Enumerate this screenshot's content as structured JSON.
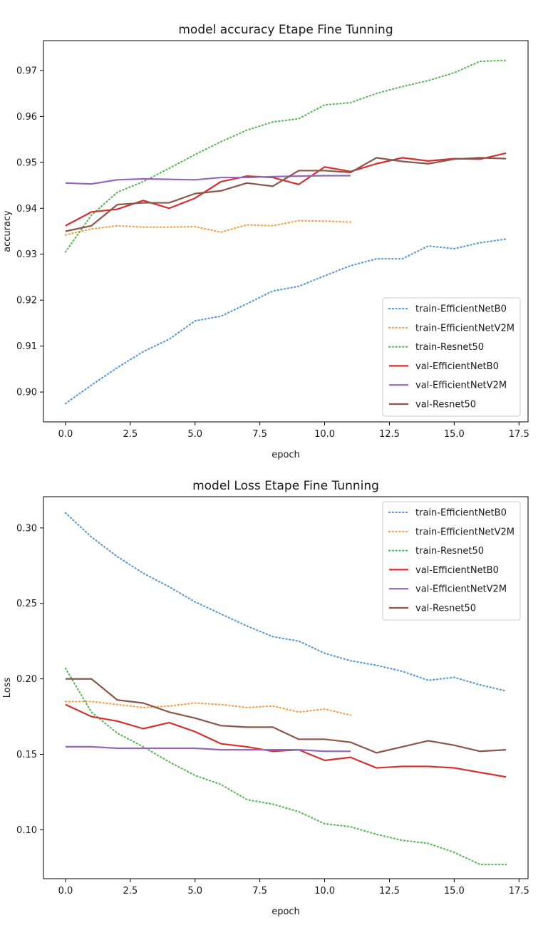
{
  "chart_data": [
    {
      "type": "line",
      "title": "model accuracy  Etape Fine Tunning",
      "xlabel": "epoch",
      "ylabel": "accuracy",
      "xlim": [
        -0.85,
        17.85
      ],
      "ylim": [
        0.8935,
        0.9765
      ],
      "xticks": [
        0.0,
        2.5,
        5.0,
        7.5,
        10.0,
        12.5,
        15.0,
        17.5
      ],
      "xtick_labels": [
        "0.0",
        "2.5",
        "5.0",
        "7.5",
        "10.0",
        "12.5",
        "15.0",
        "17.5"
      ],
      "yticks": [
        0.9,
        0.91,
        0.92,
        0.93,
        0.94,
        0.95,
        0.96,
        0.97
      ],
      "ytick_labels": [
        "0.90",
        "0.91",
        "0.92",
        "0.93",
        "0.94",
        "0.95",
        "0.96",
        "0.97"
      ],
      "grid": false,
      "legend_position": "lower-right",
      "series": [
        {
          "name": "train-EfficientNetB0",
          "color": "#5b9bd5",
          "style": "dotted",
          "x": [
            0,
            1,
            2,
            3,
            4,
            5,
            6,
            7,
            8,
            9,
            10,
            11,
            12,
            13,
            14,
            15,
            16,
            17
          ],
          "y": [
            0.8975,
            0.9015,
            0.9053,
            0.9088,
            0.9115,
            0.9155,
            0.9165,
            0.9192,
            0.922,
            0.923,
            0.9253,
            0.9275,
            0.929,
            0.929,
            0.9318,
            0.9312,
            0.9325,
            0.9333
          ]
        },
        {
          "name": "train-EfficientNetV2M",
          "color": "#f5a04a",
          "style": "dotted",
          "x": [
            0,
            1,
            2,
            3,
            4,
            5,
            6,
            7,
            8,
            9,
            10,
            11
          ],
          "y": [
            0.9342,
            0.9355,
            0.9362,
            0.9359,
            0.9359,
            0.936,
            0.9348,
            0.9364,
            0.9362,
            0.9373,
            0.9372,
            0.937
          ]
        },
        {
          "name": "train-Resnet50",
          "color": "#5fb85c",
          "style": "dotted",
          "x": [
            0,
            1,
            2,
            3,
            4,
            5,
            6,
            7,
            8,
            9,
            10,
            11,
            12,
            13,
            14,
            15,
            16,
            17
          ],
          "y": [
            0.9305,
            0.9385,
            0.9435,
            0.9458,
            0.9487,
            0.9517,
            0.9545,
            0.957,
            0.9588,
            0.9595,
            0.9625,
            0.963,
            0.965,
            0.9665,
            0.9678,
            0.9695,
            0.972,
            0.9722
          ]
        },
        {
          "name": "val-EfficientNetB0",
          "color": "#d62f2f",
          "style": "solid",
          "x": [
            0,
            1,
            2,
            3,
            4,
            5,
            6,
            7,
            8,
            9,
            10,
            11,
            12,
            13,
            14,
            15,
            16,
            17
          ],
          "y": [
            0.9362,
            0.9392,
            0.9398,
            0.9417,
            0.94,
            0.9422,
            0.9458,
            0.947,
            0.9467,
            0.9452,
            0.949,
            0.948,
            0.9497,
            0.951,
            0.9503,
            0.9508,
            0.9507,
            0.952
          ]
        },
        {
          "name": "val-EfficientNetV2M",
          "color": "#9467bd",
          "style": "solid",
          "x": [
            0,
            1,
            2,
            3,
            4,
            5,
            6,
            7,
            8,
            9,
            10,
            11
          ],
          "y": [
            0.9455,
            0.9453,
            0.9462,
            0.9464,
            0.9463,
            0.9462,
            0.9467,
            0.9467,
            0.9469,
            0.947,
            0.9471,
            0.9471
          ]
        },
        {
          "name": "val-Resnet50",
          "color": "#8c564b",
          "style": "solid",
          "x": [
            0,
            1,
            2,
            3,
            4,
            5,
            6,
            7,
            8,
            9,
            10,
            11,
            12,
            13,
            14,
            15,
            16,
            17
          ],
          "y": [
            0.935,
            0.9362,
            0.9408,
            0.9412,
            0.9412,
            0.9432,
            0.9438,
            0.9455,
            0.9448,
            0.9482,
            0.9482,
            0.9478,
            0.951,
            0.9502,
            0.9497,
            0.9507,
            0.951,
            0.9508
          ]
        }
      ]
    },
    {
      "type": "line",
      "title": "model Loss  Etape Fine Tunning",
      "xlabel": "epoch",
      "ylabel": "Loss",
      "xlim": [
        -0.85,
        17.85
      ],
      "ylim": [
        0.0676,
        0.3207
      ],
      "xticks": [
        0.0,
        2.5,
        5.0,
        7.5,
        10.0,
        12.5,
        15.0,
        17.5
      ],
      "xtick_labels": [
        "0.0",
        "2.5",
        "5.0",
        "7.5",
        "10.0",
        "12.5",
        "15.0",
        "17.5"
      ],
      "yticks": [
        0.1,
        0.15,
        0.2,
        0.25,
        0.3
      ],
      "ytick_labels": [
        "0.10",
        "0.15",
        "0.20",
        "0.25",
        "0.30"
      ],
      "grid": false,
      "legend_position": "upper-right",
      "series": [
        {
          "name": "train-EfficientNetB0",
          "color": "#5b9bd5",
          "style": "dotted",
          "x": [
            0,
            1,
            2,
            3,
            4,
            5,
            6,
            7,
            8,
            9,
            10,
            11,
            12,
            13,
            14,
            15,
            16,
            17
          ],
          "y": [
            0.31,
            0.294,
            0.281,
            0.27,
            0.261,
            0.251,
            0.243,
            0.235,
            0.228,
            0.225,
            0.217,
            0.212,
            0.209,
            0.205,
            0.199,
            0.201,
            0.196,
            0.192
          ]
        },
        {
          "name": "train-EfficientNetV2M",
          "color": "#f5a04a",
          "style": "dotted",
          "x": [
            0,
            1,
            2,
            3,
            4,
            5,
            6,
            7,
            8,
            9,
            10,
            11
          ],
          "y": [
            0.185,
            0.185,
            0.183,
            0.181,
            0.182,
            0.184,
            0.183,
            0.181,
            0.182,
            0.178,
            0.18,
            0.176
          ]
        },
        {
          "name": "train-Resnet50",
          "color": "#5fb85c",
          "style": "dotted",
          "x": [
            0,
            1,
            2,
            3,
            4,
            5,
            6,
            7,
            8,
            9,
            10,
            11,
            12,
            13,
            14,
            15,
            16,
            17
          ],
          "y": [
            0.207,
            0.178,
            0.164,
            0.155,
            0.145,
            0.136,
            0.13,
            0.12,
            0.117,
            0.112,
            0.104,
            0.102,
            0.097,
            0.093,
            0.091,
            0.085,
            0.077,
            0.077
          ]
        },
        {
          "name": "val-EfficientNetB0",
          "color": "#d62f2f",
          "style": "solid",
          "x": [
            0,
            1,
            2,
            3,
            4,
            5,
            6,
            7,
            8,
            9,
            10,
            11,
            12,
            13,
            14,
            15,
            16,
            17
          ],
          "y": [
            0.183,
            0.175,
            0.172,
            0.167,
            0.171,
            0.165,
            0.157,
            0.155,
            0.152,
            0.153,
            0.146,
            0.148,
            0.141,
            0.142,
            0.142,
            0.141,
            0.138,
            0.135
          ]
        },
        {
          "name": "val-EfficientNetV2M",
          "color": "#9467bd",
          "style": "solid",
          "x": [
            0,
            1,
            2,
            3,
            4,
            5,
            6,
            7,
            8,
            9,
            10,
            11
          ],
          "y": [
            0.155,
            0.155,
            0.154,
            0.154,
            0.154,
            0.154,
            0.153,
            0.153,
            0.153,
            0.153,
            0.152,
            0.152
          ]
        },
        {
          "name": "val-Resnet50",
          "color": "#8c564b",
          "style": "solid",
          "x": [
            0,
            1,
            2,
            3,
            4,
            5,
            6,
            7,
            8,
            9,
            10,
            11,
            12,
            13,
            14,
            15,
            16,
            17
          ],
          "y": [
            0.2,
            0.2,
            0.186,
            0.184,
            0.178,
            0.174,
            0.169,
            0.168,
            0.168,
            0.16,
            0.16,
            0.158,
            0.151,
            0.155,
            0.159,
            0.156,
            0.152,
            0.153
          ]
        }
      ]
    }
  ]
}
